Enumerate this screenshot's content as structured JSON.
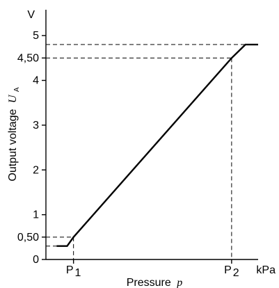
{
  "chart_data": {
    "type": "line",
    "title": "",
    "ylabel": "Output voltage",
    "ylabel_symbol": "U",
    "ylabel_subscript": "A",
    "y_unit": "V",
    "xlabel": "Pressure",
    "xlabel_symbol": "p",
    "x_unit": "kPa",
    "ylim": [
      0,
      5.5
    ],
    "xlim": [
      0,
      10
    ],
    "y_ticks": [
      {
        "value": 0,
        "label": "0"
      },
      {
        "value": 0.5,
        "label": "0,50"
      },
      {
        "value": 1,
        "label": "1"
      },
      {
        "value": 2,
        "label": "2"
      },
      {
        "value": 3,
        "label": "3"
      },
      {
        "value": 4,
        "label": "4"
      },
      {
        "value": 4.5,
        "label": "4,50"
      },
      {
        "value": 5,
        "label": "5"
      }
    ],
    "x_ticks": [
      {
        "value": 1.3,
        "label": "P",
        "sub": "1"
      },
      {
        "value": 8.75,
        "label": "P",
        "sub": "2"
      }
    ],
    "series": [
      {
        "points": [
          {
            "x": 0.5,
            "y": 0.3
          },
          {
            "x": 1.0,
            "y": 0.3
          },
          {
            "x": 1.3,
            "y": 0.5
          },
          {
            "x": 8.75,
            "y": 4.5
          },
          {
            "x": 9.4,
            "y": 4.8
          },
          {
            "x": 10.0,
            "y": 4.8
          }
        ]
      }
    ],
    "reference_lines": {
      "horizontal": [
        0.3,
        0.5,
        4.5,
        4.8
      ],
      "vertical": [
        1.3,
        8.75
      ]
    },
    "grid": false,
    "legend": "none"
  }
}
